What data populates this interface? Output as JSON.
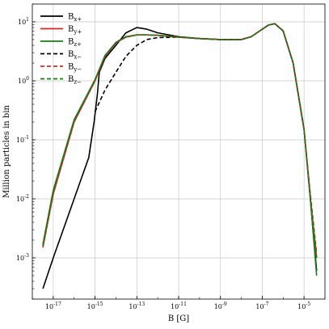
{
  "chart_data": {
    "type": "line",
    "xlabel": "B [G]",
    "ylabel": "Million particles in bin",
    "xscale": "log",
    "yscale": "log",
    "xlim": [
      1e-18,
      0.0001
    ],
    "ylim": [
      0.0002,
      20
    ],
    "grid": true,
    "legend_position": "top-left",
    "x_ticks": [
      {
        "value": 1e-17,
        "base": "10",
        "exp": "-17"
      },
      {
        "value": 1e-15,
        "base": "10",
        "exp": "-15"
      },
      {
        "value": 1e-13,
        "base": "10",
        "exp": "-13"
      },
      {
        "value": 1e-11,
        "base": "10",
        "exp": "-11"
      },
      {
        "value": 1e-09,
        "base": "10",
        "exp": "-9"
      },
      {
        "value": 1e-07,
        "base": "10",
        "exp": "-7"
      },
      {
        "value": 1e-05,
        "base": "10",
        "exp": "-5"
      }
    ],
    "y_ticks": [
      {
        "value": 0.001,
        "base": "10",
        "exp": "-3"
      },
      {
        "value": 0.01,
        "base": "10",
        "exp": "-2"
      },
      {
        "value": 0.1,
        "base": "10",
        "exp": "-1"
      },
      {
        "value": 1,
        "base": "10",
        "exp": "0"
      },
      {
        "value": 10,
        "base": "10",
        "exp": "1"
      }
    ],
    "series": [
      {
        "name": "B",
        "sub": "x+",
        "color": "#000000",
        "dash": "solid",
        "x": [
          3.2e-18,
          1e-17,
          1e-16,
          5e-16,
          9e-16,
          1.3e-15,
          1.6e-15,
          3e-15,
          1e-14,
          3e-14,
          1e-13,
          3e-13,
          1e-12,
          1e-11,
          1e-10,
          1e-09,
          1e-08,
          3e-08,
          1e-07,
          2e-07,
          4e-07,
          1e-06,
          3e-06,
          1e-05,
          2e-05,
          4e-05
        ],
        "y": [
          0.0003,
          0.001,
          0.01,
          0.05,
          0.2,
          0.6,
          1.4,
          2.4,
          4.0,
          6.5,
          8.0,
          7.5,
          6.5,
          5.6,
          5.2,
          5.0,
          5.0,
          5.6,
          7.5,
          8.8,
          9.3,
          7.0,
          2.0,
          0.15,
          0.01,
          0.0006
        ]
      },
      {
        "name": "B",
        "sub": "y+",
        "color": "#d62728",
        "dash": "solid",
        "x": [
          3.2e-18,
          1e-17,
          1e-16,
          1e-15,
          3e-15,
          1e-14,
          3e-14,
          1e-13,
          3e-13,
          1e-12,
          1e-11,
          1e-10,
          1e-09,
          1e-08,
          3e-08,
          1e-07,
          2e-07,
          4e-07,
          1e-06,
          3e-06,
          1e-05,
          2e-05,
          4e-05
        ],
        "y": [
          0.0015,
          0.012,
          0.2,
          1.0,
          2.6,
          4.4,
          5.5,
          6.0,
          6.0,
          5.9,
          5.5,
          5.2,
          5.0,
          5.0,
          5.6,
          7.5,
          8.8,
          9.3,
          7.0,
          2.0,
          0.15,
          0.01,
          0.001
        ]
      },
      {
        "name": "B",
        "sub": "z+",
        "color": "#1a7a1a",
        "dash": "solid",
        "x": [
          3.2e-18,
          1e-17,
          1e-16,
          1e-15,
          3e-15,
          1e-14,
          3e-14,
          1e-13,
          3e-13,
          1e-12,
          1e-11,
          1e-10,
          1e-09,
          1e-08,
          3e-08,
          1e-07,
          2e-07,
          4e-07,
          1e-06,
          3e-06,
          1e-05,
          2e-05,
          4e-05
        ],
        "y": [
          0.0017,
          0.014,
          0.22,
          1.05,
          2.7,
          4.5,
          5.6,
          6.0,
          6.0,
          5.9,
          5.5,
          5.2,
          5.0,
          5.0,
          5.6,
          7.5,
          8.8,
          9.3,
          7.0,
          2.0,
          0.15,
          0.01,
          0.0005
        ]
      },
      {
        "name": "B",
        "sub": "x−",
        "color": "#000000",
        "dash": "dashed",
        "x": [
          1e-15,
          3e-15,
          1e-14,
          3e-14,
          1e-13,
          3e-13,
          1e-12,
          1e-11,
          1e-10,
          1e-09,
          1e-08,
          3e-08,
          1e-07,
          2e-07,
          4e-07,
          1e-06,
          3e-06,
          1e-05
        ],
        "y": [
          0.3,
          0.7,
          1.4,
          2.6,
          4.0,
          5.0,
          5.4,
          5.5,
          5.2,
          5.0,
          5.0,
          5.6,
          7.5,
          8.8,
          9.3,
          7.0,
          2.0,
          0.15
        ]
      },
      {
        "name": "B",
        "sub": "y−",
        "color": "#d62728",
        "dash": "dashed",
        "x": [
          3.2e-18,
          1e-17,
          1e-16,
          1e-15,
          3e-15,
          1e-14,
          3e-14,
          1e-13,
          3e-13,
          1e-12,
          1e-11,
          1e-10,
          1e-09,
          1e-08,
          3e-08,
          1e-07,
          2e-07,
          4e-07,
          1e-06,
          3e-06,
          1e-05,
          2e-05,
          4e-05
        ],
        "y": [
          0.0015,
          0.012,
          0.2,
          1.0,
          2.6,
          4.4,
          5.5,
          6.0,
          6.0,
          5.9,
          5.5,
          5.2,
          5.0,
          5.0,
          5.6,
          7.5,
          8.8,
          9.3,
          7.0,
          2.0,
          0.15,
          0.012,
          0.0012
        ]
      },
      {
        "name": "B",
        "sub": "z−",
        "color": "#1a7a1a",
        "dash": "dashed",
        "x": [
          3.2e-18,
          1e-17,
          1e-16,
          1e-15,
          3e-15,
          1e-14,
          3e-14,
          1e-13,
          3e-13,
          1e-12,
          1e-11,
          1e-10,
          1e-09,
          1e-08,
          3e-08,
          1e-07,
          2e-07,
          4e-07,
          1e-06,
          3e-06,
          1e-05,
          2e-05,
          4e-05
        ],
        "y": [
          0.0016,
          0.013,
          0.21,
          1.02,
          2.65,
          4.45,
          5.55,
          6.0,
          6.0,
          5.9,
          5.5,
          5.2,
          5.0,
          5.0,
          5.6,
          7.5,
          8.8,
          9.3,
          7.0,
          2.0,
          0.15,
          0.011,
          0.001
        ]
      }
    ]
  }
}
